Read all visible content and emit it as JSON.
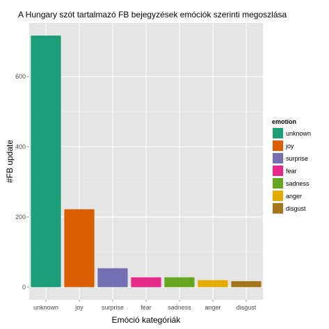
{
  "chart_data": {
    "type": "bar",
    "title": "A Hungary szót tartalmazó FB bejegyzések emóciók szerinti megoszlása",
    "xlabel": "Emóció kategóriák",
    "ylabel": "#FB update",
    "categories": [
      "unknown",
      "joy",
      "surprise",
      "fear",
      "sadness",
      "anger",
      "disgust"
    ],
    "values": [
      717,
      222,
      54,
      28,
      28,
      20,
      17
    ],
    "colors": [
      "#1b9e77",
      "#d95f02",
      "#7570b3",
      "#e7298a",
      "#66a61e",
      "#e6ab02",
      "#a6761d"
    ],
    "y_ticks": [
      0,
      200,
      400,
      600
    ],
    "ylim": [
      -36,
      753
    ],
    "grid": true,
    "legend": {
      "title": "emotion",
      "placement": "right",
      "items": [
        "unknown",
        "joy",
        "surprise",
        "fear",
        "sadness",
        "anger",
        "disgust"
      ]
    }
  }
}
